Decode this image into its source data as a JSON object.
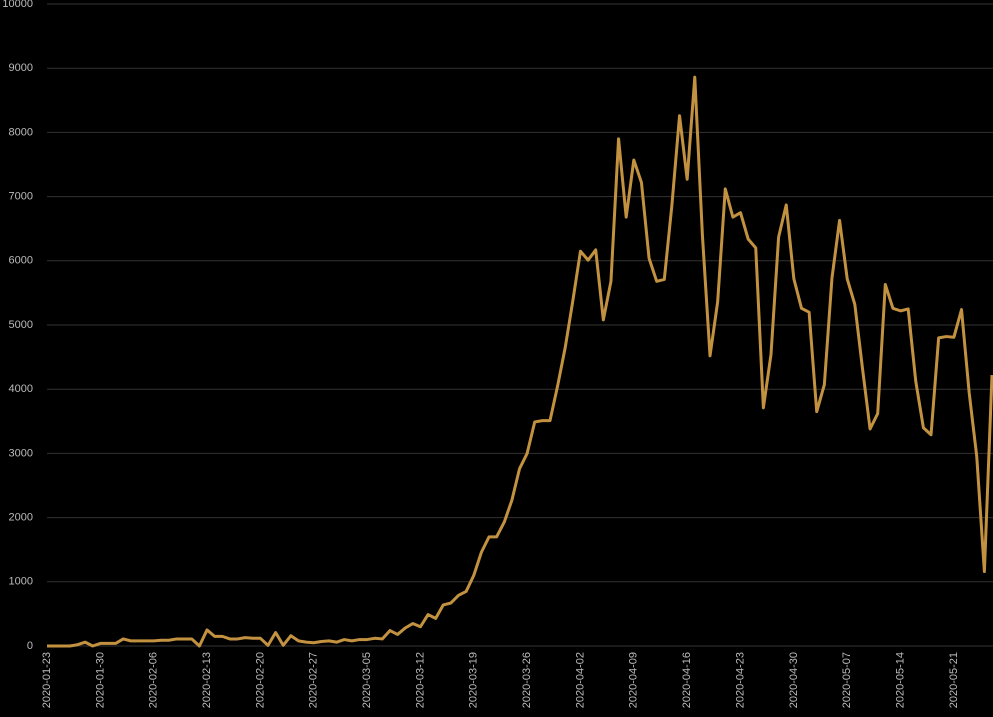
{
  "chart_data": {
    "type": "line",
    "color": "#c39240",
    "grid": true,
    "categories": [
      "2020-01-23",
      null,
      null,
      null,
      null,
      null,
      null,
      "2020-01-30",
      null,
      null,
      null,
      null,
      null,
      null,
      "2020-02-06",
      null,
      null,
      null,
      null,
      null,
      null,
      "2020-02-13",
      null,
      null,
      null,
      null,
      null,
      null,
      "2020-02-20",
      null,
      null,
      null,
      null,
      null,
      null,
      "2020-02-27",
      null,
      null,
      null,
      null,
      null,
      null,
      "2020-03-05",
      null,
      null,
      null,
      null,
      null,
      null,
      "2020-03-12",
      null,
      null,
      null,
      null,
      null,
      null,
      "2020-03-19",
      null,
      null,
      null,
      null,
      null,
      null,
      "2020-03-26",
      null,
      null,
      null,
      null,
      null,
      null,
      "2020-04-02",
      null,
      null,
      null,
      null,
      null,
      null,
      "2020-04-09",
      null,
      null,
      null,
      null,
      null,
      null,
      "2020-04-16",
      null,
      null,
      null,
      null,
      null,
      null,
      "2020-04-23",
      null,
      null,
      null,
      null,
      null,
      null,
      "2020-04-30",
      null,
      null,
      null,
      null,
      null,
      null,
      "2020-05-07",
      null,
      null,
      null,
      null,
      null,
      null,
      "2020-05-14",
      null,
      null,
      null,
      null,
      null,
      null,
      "2020-05-21",
      null,
      null,
      null,
      null,
      null
    ],
    "values": [
      0,
      0,
      0,
      0,
      20,
      60,
      0,
      40,
      40,
      40,
      110,
      80,
      80,
      80,
      80,
      90,
      90,
      110,
      110,
      110,
      0,
      250,
      150,
      150,
      110,
      110,
      130,
      120,
      120,
      10,
      210,
      10,
      160,
      80,
      60,
      50,
      70,
      80,
      60,
      100,
      80,
      100,
      100,
      120,
      110,
      240,
      180,
      280,
      350,
      300,
      490,
      430,
      640,
      670,
      790,
      850,
      1100,
      1460,
      1700,
      1700,
      1930,
      2270,
      2760,
      3000,
      3490,
      3510,
      3510,
      4050,
      4650,
      5380,
      6150,
      6010,
      6170,
      5080,
      5680,
      7900,
      6680,
      7570,
      7220,
      6040,
      5680,
      5710,
      6870,
      8260,
      7270,
      8860,
      6400,
      4520,
      5360,
      7120,
      6680,
      6750,
      6340,
      6200,
      3710,
      4540,
      6370,
      6870,
      5720,
      5260,
      5200,
      3650,
      4070,
      5730,
      6630,
      5720,
      5320,
      4330,
      3380,
      3620,
      5630,
      5260,
      5220,
      5250,
      4120,
      3400,
      3290,
      4800,
      4820,
      4810,
      5240,
      3950,
      2950,
      1160,
      4220
    ],
    "ylim": [
      0,
      10000
    ],
    "yticks": [
      0,
      1000,
      2000,
      3000,
      4000,
      5000,
      6000,
      7000,
      8000,
      9000,
      10000
    ]
  }
}
